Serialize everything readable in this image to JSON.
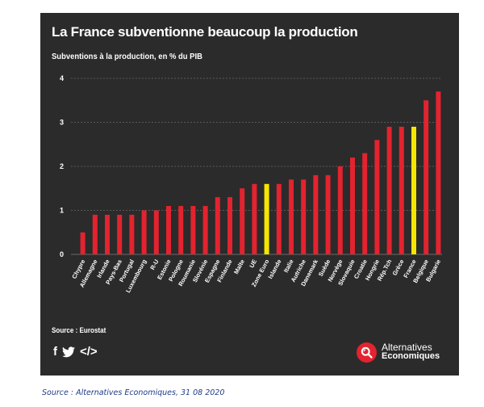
{
  "chart_data": {
    "type": "bar",
    "title": "La France subventionne beaucoup la production",
    "subtitle": "Subventions à la production, en % du PIB",
    "xlabel": "",
    "ylabel": "",
    "ylim": [
      0,
      4
    ],
    "yticks": [
      "0",
      "1",
      "2",
      "3",
      "4"
    ],
    "grid": true,
    "categories": [
      "Chypre",
      "Allemagne",
      "Irlande",
      "Pays-Bas",
      "Portugal",
      "Luxembourg",
      "R-U",
      "Estonie",
      "Pologne",
      "Roumanie",
      "Slovénie",
      "Espagne",
      "Finlande",
      "Malte",
      "UE",
      "Zone Euro",
      "Islande",
      "Italie",
      "Autriche",
      "Danemark",
      "Suède",
      "Norvège",
      "Slovaquie",
      "Croatie",
      "Hongrie",
      "Rép.Tch",
      "Grèce",
      "France",
      "Belgique",
      "Bulgarie"
    ],
    "values": [
      0.5,
      0.9,
      0.9,
      0.9,
      0.9,
      1.0,
      1.0,
      1.1,
      1.1,
      1.1,
      1.1,
      1.3,
      1.3,
      1.5,
      1.6,
      1.6,
      1.6,
      1.7,
      1.7,
      1.8,
      1.8,
      2.0,
      2.2,
      2.3,
      2.6,
      2.9,
      2.9,
      2.9,
      3.5,
      3.7
    ],
    "highlight": [
      "Zone Euro",
      "France"
    ],
    "colors": {
      "bar": "#e3232f",
      "highlight": "#f4e600",
      "background": "#2b2b2b",
      "grid": "#6a6a6a",
      "text": "#ffffff"
    },
    "source": "Source : Eurostat"
  },
  "share": {
    "icons": [
      "facebook-icon",
      "twitter-icon",
      "embed-icon"
    ],
    "facebook": "f",
    "embed": "</>"
  },
  "brand": {
    "line1": "Alternatives",
    "line2": "Economiques"
  },
  "page_source": "Source : Alternatives Economiques, 31 08 2020"
}
